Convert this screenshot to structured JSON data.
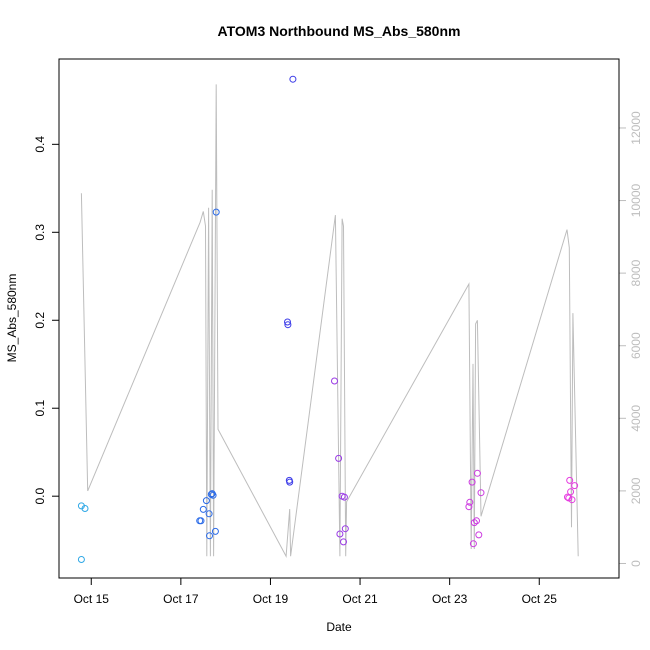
{
  "chart_data": {
    "type": "scatter",
    "title": "ATOM3 Northbound MS_Abs_580nm",
    "xlabel": "Date",
    "ylabel": "MS_Abs_580nm",
    "x_ticks": [
      "Oct 15",
      "Oct 17",
      "Oct 19",
      "Oct 21",
      "Oct 23",
      "Oct 25"
    ],
    "x_tick_days": [
      15,
      17,
      19,
      21,
      23,
      25
    ],
    "xlim": [
      14.28,
      26.78
    ],
    "y_ticks": [
      0.0,
      0.1,
      0.2,
      0.3,
      0.4
    ],
    "y_tick_labels": [
      "0.0",
      "0.1",
      "0.2",
      "0.3",
      "0.4"
    ],
    "ylim": [
      -0.093,
      0.497
    ],
    "y2_ticks": [
      0,
      2000,
      4000,
      6000,
      8000,
      10000,
      12000
    ],
    "y2_tick_labels": [
      "0",
      "2000",
      "4000",
      "6000",
      "8000",
      "10000",
      "12000"
    ],
    "y2lim": [
      -400,
      13900
    ],
    "grid": false,
    "altitude_color": "#bdbdbd",
    "series": [
      {
        "color": "#2fa8e6",
        "points": [
          [
            14.78,
            -0.011
          ],
          [
            14.86,
            -0.014
          ],
          [
            14.78,
            -0.072
          ]
        ]
      },
      {
        "color": "#2b6be8",
        "points": [
          [
            17.42,
            -0.028
          ],
          [
            17.45,
            -0.028
          ],
          [
            17.5,
            -0.015
          ],
          [
            17.57,
            -0.005
          ],
          [
            17.63,
            -0.02
          ],
          [
            17.68,
            0.002
          ],
          [
            17.7,
            0.003
          ],
          [
            17.72,
            0.001
          ],
          [
            17.64,
            -0.045
          ],
          [
            17.77,
            -0.04
          ],
          [
            17.79,
            0.323
          ]
        ]
      },
      {
        "color": "#3a3ae8",
        "points": [
          [
            19.38,
            0.198
          ],
          [
            19.39,
            0.195
          ],
          [
            19.42,
            0.018
          ],
          [
            19.43,
            0.016
          ],
          [
            19.5,
            0.474
          ]
        ]
      },
      {
        "color": "#9a3ae6",
        "points": [
          [
            20.43,
            0.131
          ],
          [
            20.52,
            0.043
          ],
          [
            20.55,
            -0.043
          ],
          [
            20.6,
            0.0
          ],
          [
            20.65,
            -0.001
          ],
          [
            20.67,
            -0.037
          ],
          [
            20.63,
            -0.052
          ]
        ]
      },
      {
        "color": "#cc3ae0",
        "points": [
          [
            23.43,
            -0.012
          ],
          [
            23.45,
            -0.007
          ],
          [
            23.5,
            0.016
          ],
          [
            23.53,
            -0.054
          ],
          [
            23.55,
            -0.03
          ],
          [
            23.6,
            -0.028
          ],
          [
            23.62,
            0.026
          ],
          [
            23.65,
            -0.044
          ],
          [
            23.7,
            0.004
          ]
        ]
      },
      {
        "color": "#e63ae0",
        "points": [
          [
            25.63,
            -0.001
          ],
          [
            25.66,
            -0.002
          ],
          [
            25.68,
            0.018
          ],
          [
            25.7,
            0.005
          ],
          [
            25.73,
            -0.004
          ],
          [
            25.79,
            0.012
          ]
        ]
      }
    ],
    "altitude_line": [
      [
        14.78,
        10200
      ],
      [
        14.92,
        2000
      ],
      [
        17.43,
        9400
      ],
      [
        17.5,
        9700
      ],
      [
        17.55,
        9300
      ],
      [
        17.58,
        200
      ],
      [
        17.62,
        9800
      ],
      [
        17.66,
        200
      ],
      [
        17.7,
        10300
      ],
      [
        17.73,
        200
      ],
      [
        17.79,
        13200
      ],
      [
        17.83,
        3700
      ],
      [
        19.35,
        200
      ],
      [
        19.43,
        1500
      ],
      [
        19.45,
        200
      ],
      [
        20.45,
        9600
      ],
      [
        20.55,
        200
      ],
      [
        20.6,
        9500
      ],
      [
        20.63,
        9300
      ],
      [
        20.68,
        200
      ],
      [
        20.7,
        1700
      ],
      [
        23.43,
        7700
      ],
      [
        23.48,
        400
      ],
      [
        23.52,
        5500
      ],
      [
        23.55,
        400
      ],
      [
        23.58,
        6600
      ],
      [
        23.62,
        6700
      ],
      [
        23.7,
        1300
      ],
      [
        25.62,
        9200
      ],
      [
        25.67,
        8700
      ],
      [
        25.72,
        1000
      ],
      [
        25.75,
        6900
      ],
      [
        25.87,
        200
      ]
    ]
  }
}
